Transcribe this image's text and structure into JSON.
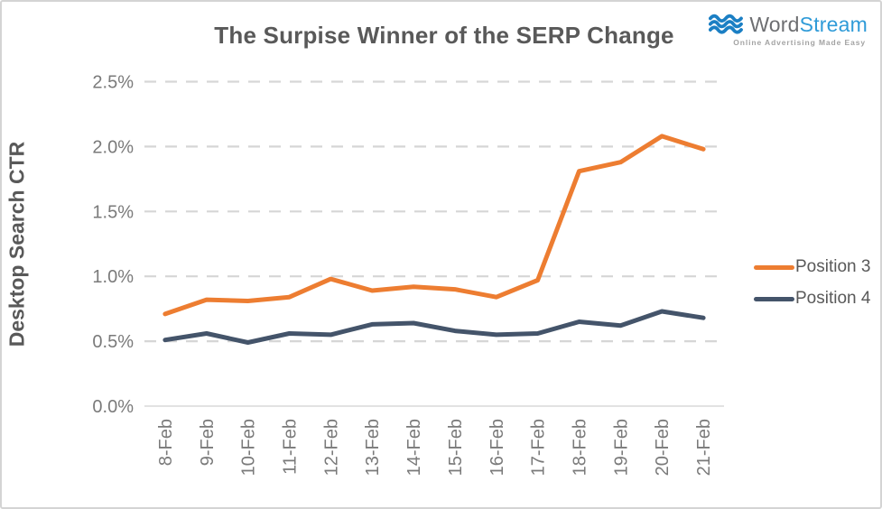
{
  "title": "The Surpise Winner of the SERP Change",
  "logo": {
    "word": "Word",
    "stream": "Stream",
    "tagline": "Online Advertising Made Easy",
    "wave_color": "#1b7fc4",
    "word_color": "#6d6e71",
    "stream_color": "#2f9bd8"
  },
  "chart_data": {
    "type": "line",
    "title": "The Surpise Winner of the SERP Change",
    "xlabel": "",
    "ylabel": "Desktop Search CTR",
    "categories": [
      "8-Feb",
      "9-Feb",
      "10-Feb",
      "11-Feb",
      "12-Feb",
      "13-Feb",
      "14-Feb",
      "15-Feb",
      "16-Feb",
      "17-Feb",
      "18-Feb",
      "19-Feb",
      "20-Feb",
      "21-Feb"
    ],
    "series": [
      {
        "name": "Position 3",
        "color": "#ED7D31",
        "values": [
          0.71,
          0.82,
          0.81,
          0.84,
          0.98,
          0.89,
          0.92,
          0.9,
          0.84,
          0.97,
          1.81,
          1.88,
          2.08,
          1.98
        ]
      },
      {
        "name": "Position 4",
        "color": "#44546A",
        "values": [
          0.51,
          0.56,
          0.49,
          0.56,
          0.55,
          0.63,
          0.64,
          0.58,
          0.55,
          0.56,
          0.65,
          0.62,
          0.73,
          0.68
        ]
      }
    ],
    "y_ticks": [
      "0.0%",
      "0.5%",
      "1.0%",
      "1.5%",
      "2.0%",
      "2.5%"
    ],
    "ylim": [
      0,
      2.5
    ],
    "grid": "horizontal-dashed",
    "grid_color": "#d6d6d6",
    "axis_color": "#d9d9d9",
    "legend_position": "right"
  }
}
